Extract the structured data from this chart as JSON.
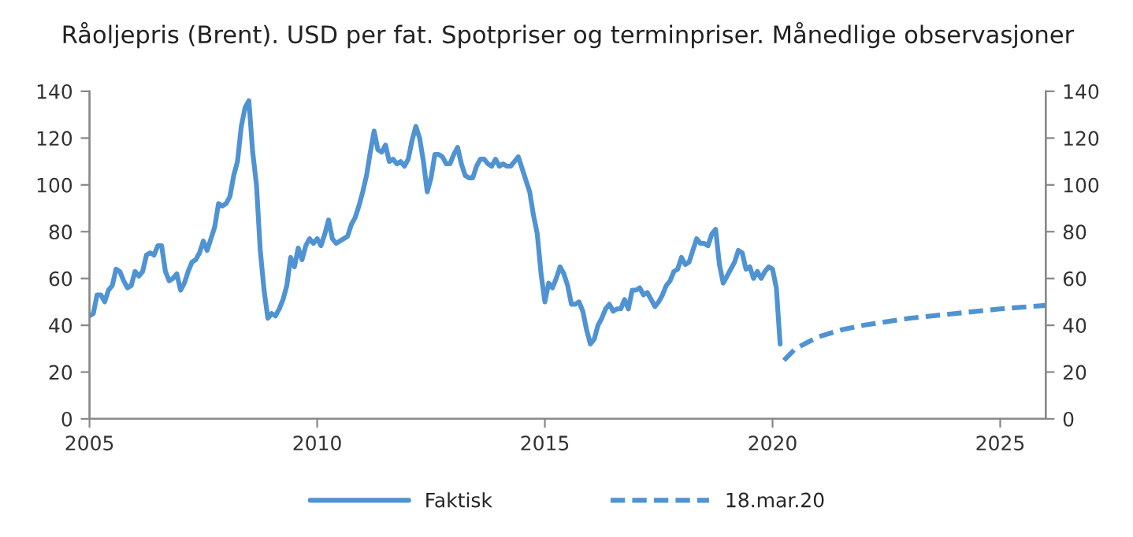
{
  "chart_data": {
    "type": "line",
    "title": "Råoljepris (Brent). USD per fat. Spotpriser og terminpriser. Månedlige observasjoner",
    "series": [
      {
        "name": "Faktisk",
        "color": "#4f93d3",
        "line_style": "solid",
        "x": [
          "2005-01",
          "2005-02",
          "2005-03",
          "2005-04",
          "2005-05",
          "2005-06",
          "2005-07",
          "2005-08",
          "2005-09",
          "2005-10",
          "2005-11",
          "2005-12",
          "2006-01",
          "2006-02",
          "2006-03",
          "2006-04",
          "2006-05",
          "2006-06",
          "2006-07",
          "2006-08",
          "2006-09",
          "2006-10",
          "2006-11",
          "2006-12",
          "2007-01",
          "2007-02",
          "2007-03",
          "2007-04",
          "2007-05",
          "2007-06",
          "2007-07",
          "2007-08",
          "2007-09",
          "2007-10",
          "2007-11",
          "2007-12",
          "2008-01",
          "2008-02",
          "2008-03",
          "2008-04",
          "2008-05",
          "2008-06",
          "2008-07",
          "2008-08",
          "2008-09",
          "2008-10",
          "2008-11",
          "2008-12",
          "2009-01",
          "2009-02",
          "2009-03",
          "2009-04",
          "2009-05",
          "2009-06",
          "2009-07",
          "2009-08",
          "2009-09",
          "2009-10",
          "2009-11",
          "2009-12",
          "2010-01",
          "2010-02",
          "2010-03",
          "2010-04",
          "2010-05",
          "2010-06",
          "2010-07",
          "2010-08",
          "2010-09",
          "2010-10",
          "2010-11",
          "2010-12",
          "2011-01",
          "2011-02",
          "2011-03",
          "2011-04",
          "2011-05",
          "2011-06",
          "2011-07",
          "2011-08",
          "2011-09",
          "2011-10",
          "2011-11",
          "2011-12",
          "2012-01",
          "2012-02",
          "2012-03",
          "2012-04",
          "2012-05",
          "2012-06",
          "2012-07",
          "2012-08",
          "2012-09",
          "2012-10",
          "2012-11",
          "2012-12",
          "2013-01",
          "2013-02",
          "2013-03",
          "2013-04",
          "2013-05",
          "2013-06",
          "2013-07",
          "2013-08",
          "2013-09",
          "2013-10",
          "2013-11",
          "2013-12",
          "2014-01",
          "2014-02",
          "2014-03",
          "2014-04",
          "2014-05",
          "2014-06",
          "2014-07",
          "2014-08",
          "2014-09",
          "2014-10",
          "2014-11",
          "2014-12",
          "2015-01",
          "2015-02",
          "2015-03",
          "2015-04",
          "2015-05",
          "2015-06",
          "2015-07",
          "2015-08",
          "2015-09",
          "2015-10",
          "2015-11",
          "2015-12",
          "2016-01",
          "2016-02",
          "2016-03",
          "2016-04",
          "2016-05",
          "2016-06",
          "2016-07",
          "2016-08",
          "2016-09",
          "2016-10",
          "2016-11",
          "2016-12",
          "2017-01",
          "2017-02",
          "2017-03",
          "2017-04",
          "2017-05",
          "2017-06",
          "2017-07",
          "2017-08",
          "2017-09",
          "2017-10",
          "2017-11",
          "2017-12",
          "2018-01",
          "2018-02",
          "2018-03",
          "2018-04",
          "2018-05",
          "2018-06",
          "2018-07",
          "2018-08",
          "2018-09",
          "2018-10",
          "2018-11",
          "2018-12",
          "2019-01",
          "2019-02",
          "2019-03",
          "2019-04",
          "2019-05",
          "2019-06",
          "2019-07",
          "2019-08",
          "2019-09",
          "2019-10",
          "2019-11",
          "2019-12",
          "2020-01",
          "2020-02",
          "2020-03"
        ],
        "values": [
          44,
          45,
          53,
          53,
          50,
          55,
          57,
          64,
          63,
          59,
          56,
          57,
          63,
          61,
          63,
          70,
          71,
          70,
          74,
          74,
          63,
          59,
          60,
          62,
          55,
          58,
          63,
          67,
          68,
          71,
          76,
          72,
          77,
          82,
          92,
          91,
          92,
          95,
          104,
          110,
          125,
          133,
          136,
          114,
          100,
          72,
          55,
          43,
          45,
          44,
          47,
          51,
          57,
          69,
          65,
          73,
          68,
          74,
          77,
          75,
          77,
          74,
          79,
          85,
          77,
          75,
          76,
          77,
          78,
          83,
          86,
          91,
          97,
          104,
          114,
          123,
          115,
          114,
          117,
          110,
          111,
          109,
          110,
          108,
          111,
          119,
          125,
          120,
          110,
          97,
          103,
          113,
          113,
          112,
          109,
          109,
          113,
          116,
          109,
          104,
          103,
          103,
          108,
          111,
          111,
          109,
          108,
          111,
          108,
          109,
          108,
          108,
          110,
          112,
          107,
          102,
          97,
          87,
          79,
          62,
          50,
          58,
          56,
          60,
          65,
          62,
          57,
          49,
          49,
          50,
          46,
          38,
          32,
          34,
          40,
          43,
          47,
          49,
          46,
          47,
          47,
          51,
          47,
          55,
          55,
          56,
          53,
          54,
          51,
          48,
          50,
          53,
          57,
          59,
          63,
          64,
          69,
          66,
          67,
          72,
          77,
          75,
          75,
          74,
          79,
          81,
          66,
          58,
          61,
          64,
          67,
          72,
          71,
          64,
          65,
          60,
          63,
          60,
          63,
          65,
          64,
          56,
          32
        ]
      },
      {
        "name": "18.mar.20",
        "color": "#4f93d3",
        "line_style": "dashed",
        "x": [
          "2020-04",
          "2020-07",
          "2021-01",
          "2021-07",
          "2022-01",
          "2023-01",
          "2024-01",
          "2025-01",
          "2026-01"
        ],
        "values": [
          25,
          30,
          35,
          38,
          40,
          43,
          45,
          47,
          48.5
        ]
      }
    ],
    "xlim": [
      "2005-01",
      "2026-01"
    ],
    "xticks": [
      {
        "value": "2005",
        "label": "2005"
      },
      {
        "value": "2010",
        "label": "2010"
      },
      {
        "value": "2015",
        "label": "2015"
      },
      {
        "value": "2020",
        "label": "2020"
      },
      {
        "value": "2025",
        "label": "2025"
      }
    ],
    "ylim": [
      0,
      140
    ],
    "yticks": [
      0,
      20,
      40,
      60,
      80,
      100,
      120,
      140
    ],
    "y2lim": [
      0,
      140
    ],
    "y2ticks": [
      0,
      20,
      40,
      60,
      80,
      100,
      120,
      140
    ],
    "grid": false,
    "legend": "bottom",
    "marker": "none"
  }
}
